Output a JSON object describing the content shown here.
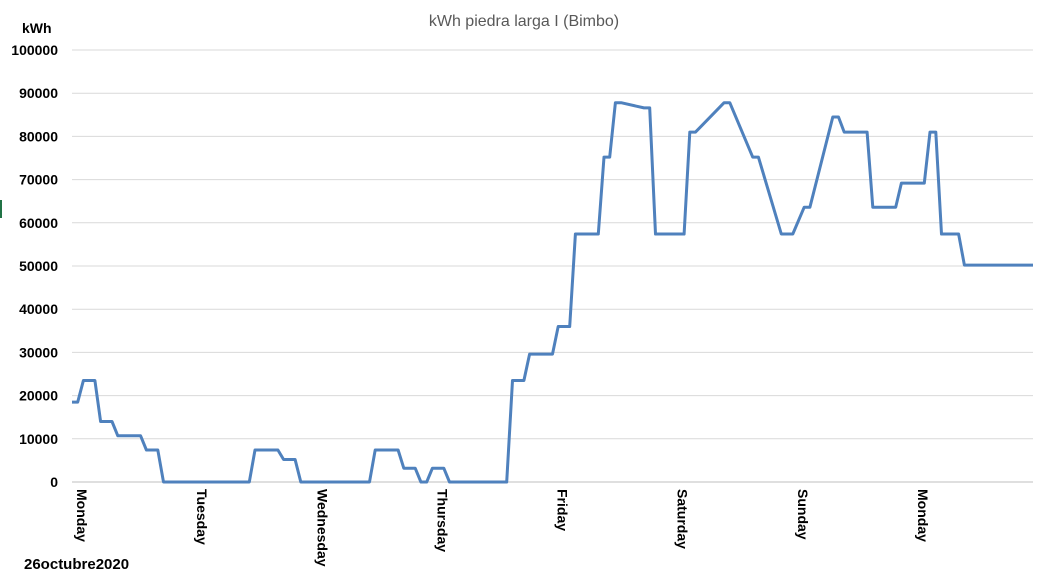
{
  "footnote": "26octubre2020",
  "chart_data": {
    "type": "line",
    "title": "kWh piedra larga I (Bimbo)",
    "ylabel": "kWh",
    "xlabel": "",
    "ylim": [
      0,
      100000
    ],
    "yticks": [
      0,
      10000,
      20000,
      30000,
      40000,
      50000,
      60000,
      70000,
      80000,
      90000,
      100000
    ],
    "xlim": [
      0,
      168
    ],
    "grid": true,
    "legend": "none",
    "color": "#4f81bd",
    "categories": [
      "Monday",
      "Tuesday",
      "Wednesday",
      "Thursday",
      "Friday",
      "Saturday",
      "Sunday",
      "Monday"
    ],
    "series": [
      {
        "x": [
          0,
          1,
          2,
          4,
          5,
          7,
          8,
          12,
          13,
          15,
          16,
          24,
          31,
          32,
          36,
          37,
          39,
          40,
          48,
          52,
          53,
          57,
          58,
          60,
          61,
          62,
          63,
          65,
          66,
          72,
          76,
          77,
          79,
          80,
          84,
          85,
          87,
          88,
          92,
          93,
          94,
          95,
          96,
          100,
          101,
          102,
          103,
          107,
          108,
          109,
          114,
          115,
          119,
          120,
          124,
          125,
          126,
          128,
          129,
          133,
          134,
          135,
          139,
          140,
          144,
          145,
          149,
          150,
          151,
          152,
          155,
          156,
          160,
          161,
          165,
          166,
          168
        ],
        "y": [
          18500,
          18500,
          23500,
          23500,
          14000,
          14000,
          10700,
          10700,
          7400,
          7400,
          0,
          0,
          0,
          7400,
          7400,
          5200,
          5200,
          0,
          0,
          0,
          7400,
          7400,
          3200,
          3200,
          0,
          0,
          3200,
          3200,
          0,
          0,
          0,
          23500,
          23500,
          29600,
          29600,
          36000,
          36000,
          57400,
          57400,
          75200,
          75200,
          87800,
          87800,
          86600,
          86600,
          57400,
          57400,
          57400,
          81000,
          81000,
          87800,
          87800,
          75200,
          75200,
          57400,
          57400,
          57400,
          63600,
          63600,
          84500,
          84500,
          81000,
          81000,
          63600,
          63600,
          69200,
          69200,
          81000,
          81000,
          57400,
          57400,
          50200,
          50200,
          50200,
          50200,
          50200,
          50200
        ]
      }
    ]
  }
}
